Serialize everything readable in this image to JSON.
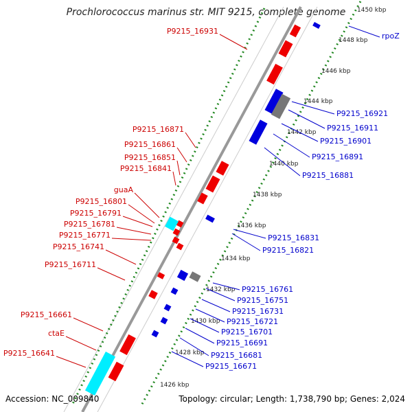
{
  "title": "Prochlorococcus marinus str. MIT 9215, complete genome",
  "accession_text": "Accession: NC_009840",
  "summary_text": "Topology: circular; Length: 1,738,790 bp; Genes: 2,024",
  "colors": {
    "forward_gene": "#ee0000",
    "reverse_gene": "#0000dd",
    "rna_gene": "#00eeff",
    "other_feature": "#777777",
    "backbone": "#999999",
    "tick_dots": "#228822",
    "label_red": "#cc0000",
    "label_blue": "#0000cc"
  },
  "scale_ticks": [
    "1450 kbp",
    "1448 kbp",
    "1446 kbp",
    "1444 kbp",
    "1442 kbp",
    "1440 kbp",
    "1438 kbp",
    "1436 kbp",
    "1434 kbp",
    "1432 kbp",
    "1430 kbp",
    "1428 kbp",
    "1426 kbp"
  ],
  "forward_labels": [
    "P9215_16931",
    "P9215_16871",
    "P9215_16861",
    "P9215_16851",
    "P9215_16841",
    "guaA",
    "P9215_16801",
    "P9215_16791",
    "P9215_16781",
    "P9215_16771",
    "P9215_16741",
    "P9215_16711",
    "P9215_16661",
    "ctaE",
    "P9215_16641"
  ],
  "reverse_labels": [
    "rpoZ",
    "P9215_16921",
    "P9215_16911",
    "P9215_16901",
    "P9215_16891",
    "P9215_16881",
    "P9215_16831",
    "P9215_16821",
    "P9215_16761",
    "P9215_16751",
    "P9215_16731",
    "P9215_16721",
    "P9215_16701",
    "P9215_16691",
    "P9215_16681",
    "P9215_16671"
  ]
}
